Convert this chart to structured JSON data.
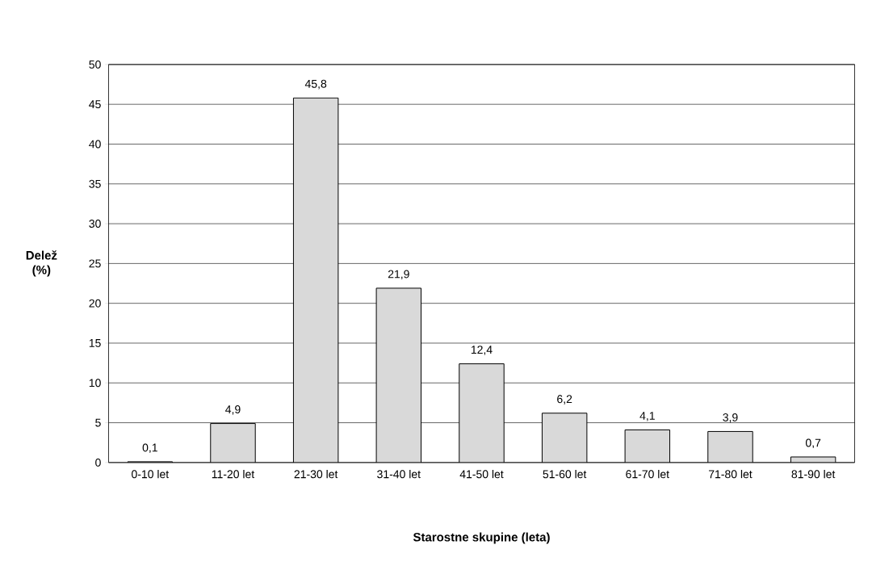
{
  "chart_data": {
    "type": "bar",
    "xlabel": "Starostne skupine (leta)",
    "ylabel": "Delež (%)",
    "categories": [
      "0-10 let",
      "11-20 let",
      "21-30 let",
      "31-40 let",
      "41-50 let",
      "51-60 let",
      "61-70 let",
      "71-80 let",
      "81-90 let"
    ],
    "values": [
      0.1,
      4.9,
      45.8,
      21.9,
      12.4,
      6.2,
      4.1,
      3.9,
      0.7
    ],
    "value_labels": [
      "0,1",
      "4,9",
      "45,8",
      "21,9",
      "12,4",
      "6,2",
      "4,1",
      "3,9",
      "0,7"
    ],
    "color": "#d9d9d9",
    "ylim": [
      0,
      50
    ],
    "yticks": [
      0,
      5,
      10,
      15,
      20,
      25,
      30,
      35,
      40,
      45,
      50
    ],
    "grid": "y"
  }
}
